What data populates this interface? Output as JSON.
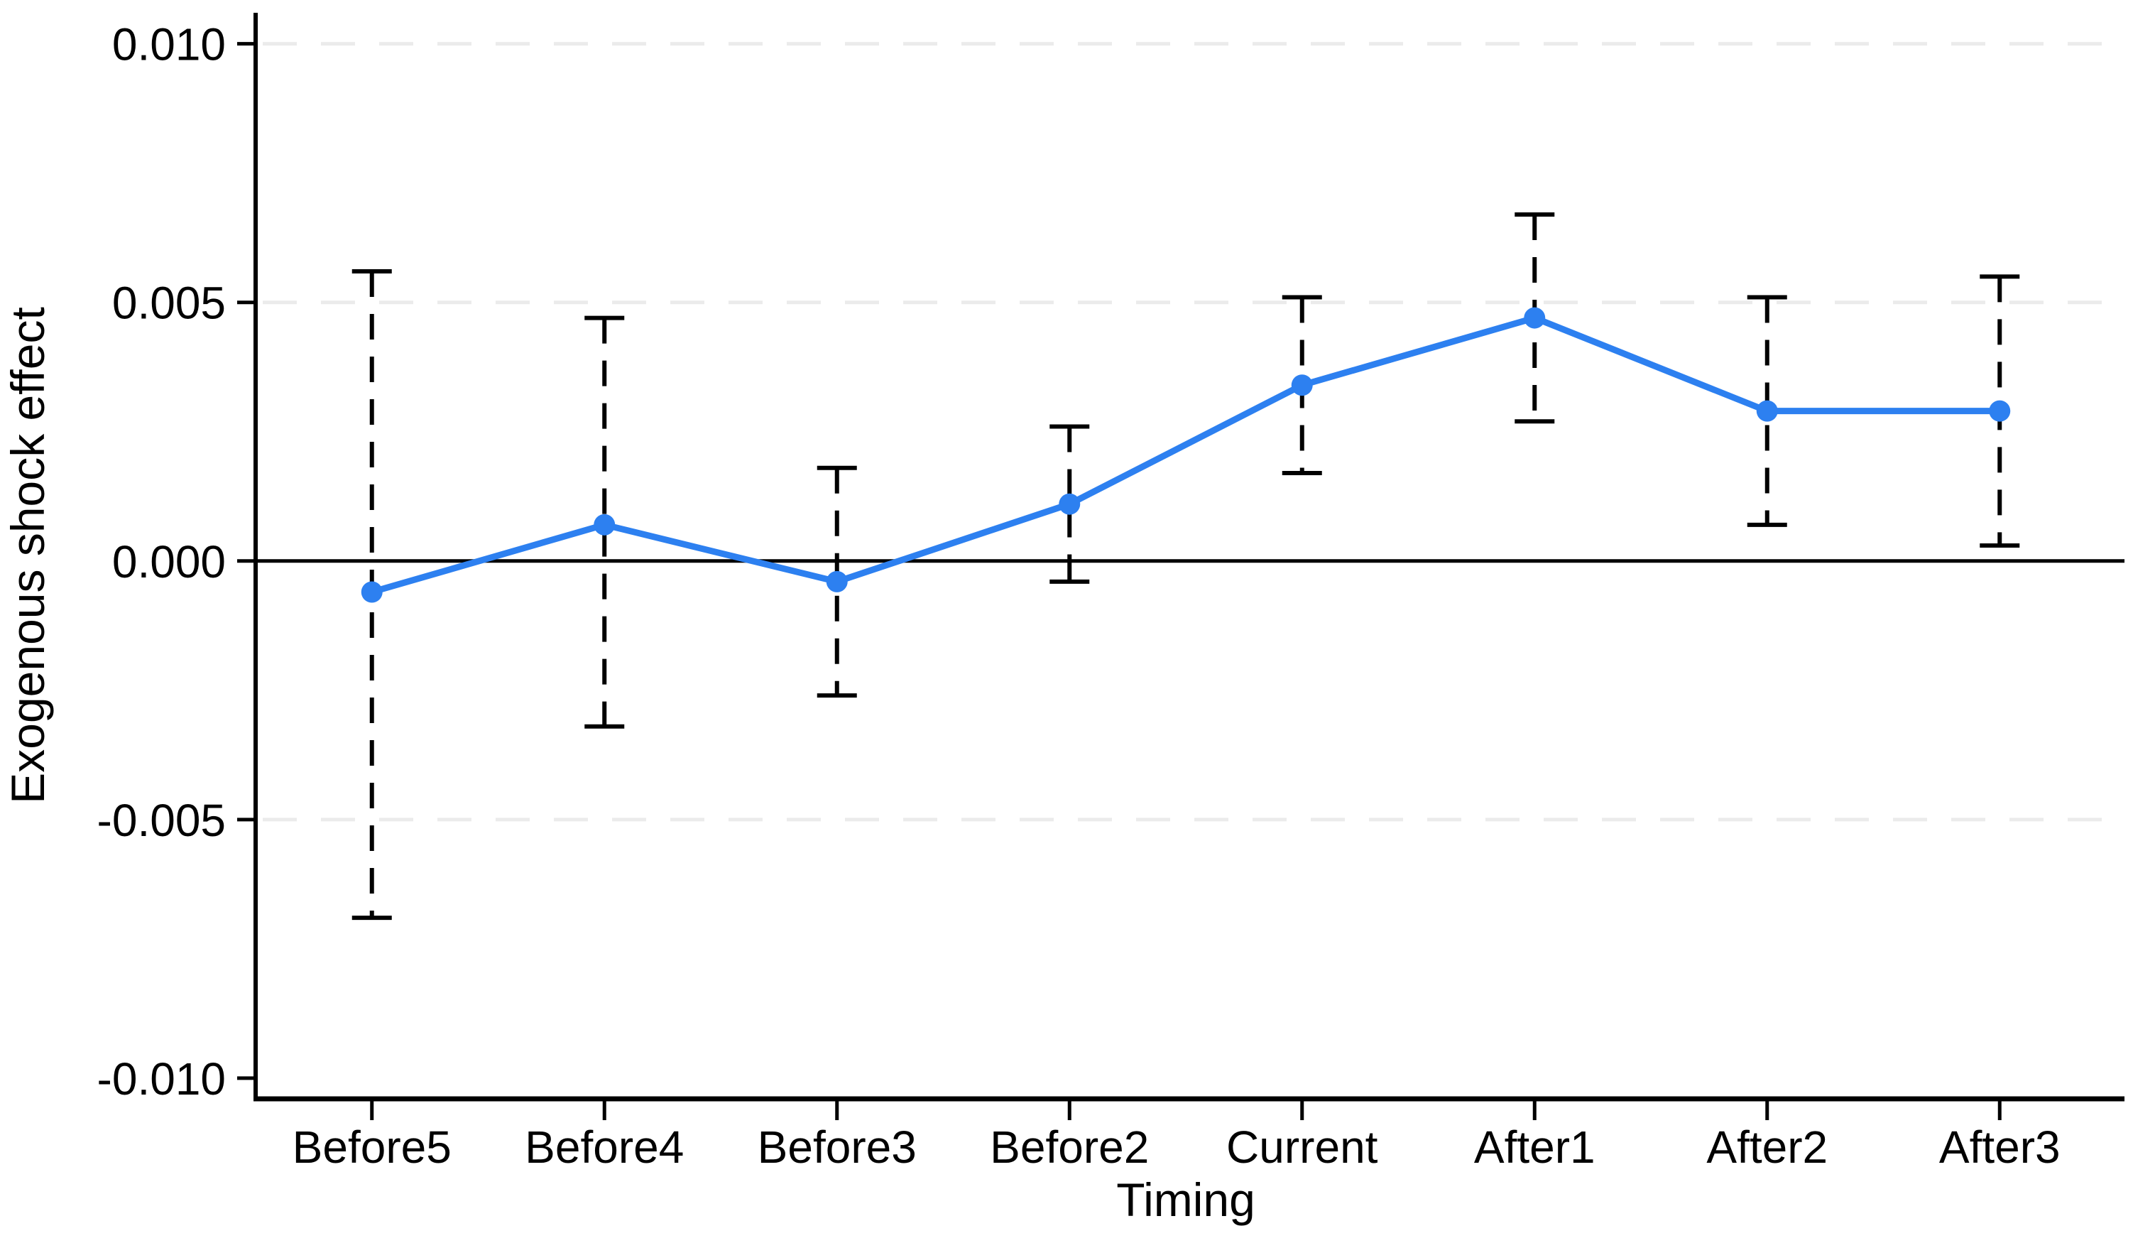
{
  "chart_data": {
    "type": "line",
    "title": "",
    "xlabel": "Timing",
    "ylabel": "Exogenous shock effect",
    "categories": [
      "Before5",
      "Before4",
      "Before3",
      "Before2",
      "Current",
      "After1",
      "After2",
      "After3"
    ],
    "series": [
      {
        "name": "Exogenous shock effect",
        "values": [
          -0.0006,
          0.0007,
          -0.0004,
          0.0011,
          0.0034,
          0.0047,
          0.0029,
          0.0029
        ],
        "ci_low": [
          -0.0069,
          -0.0032,
          -0.0026,
          -0.0004,
          0.0017,
          0.0027,
          0.0007,
          0.0003
        ],
        "ci_high": [
          0.0056,
          0.0047,
          0.0018,
          0.0026,
          0.0051,
          0.0067,
          0.0051,
          0.0055
        ]
      }
    ],
    "yticks": [
      -0.01,
      -0.005,
      0.0,
      0.005,
      0.01
    ],
    "ytick_labels": [
      "-0.010",
      "-0.005",
      "0.000",
      "0.005",
      "0.010"
    ],
    "grid_ticks": [
      0.01,
      0.005,
      -0.005
    ],
    "ylim": [
      -0.0104,
      0.0106
    ],
    "zero_line": true,
    "grid": "horizontal-dashed",
    "legend": "none",
    "colors": {
      "line": "#2d80f0",
      "marker": "#2d80f0",
      "error_bar": "#000000",
      "zero_line": "#000000",
      "axis": "#000000",
      "grid": "#ebebeb",
      "background": "#ffffff"
    }
  }
}
